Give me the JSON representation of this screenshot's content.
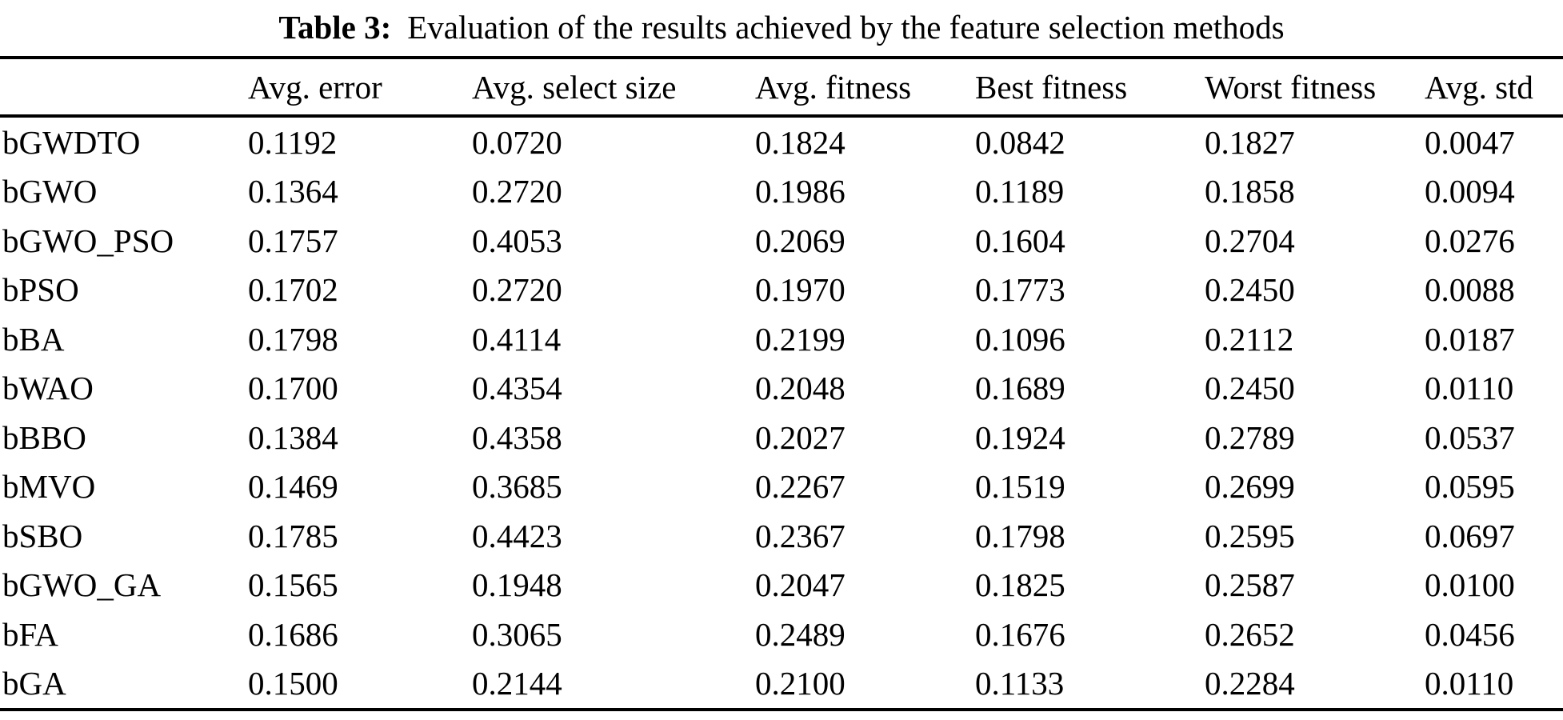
{
  "caption": {
    "label": "Table 3:",
    "text": "Evaluation of the results achieved by the feature selection methods"
  },
  "table": {
    "columns": [
      "",
      "Avg. error",
      "Avg. select size",
      "Avg. fitness",
      "Best fitness",
      "Worst fitness",
      "Avg. std"
    ],
    "rows": [
      {
        "method": "bGWDTO",
        "values": [
          "0.1192",
          "0.0720",
          "0.1824",
          "0.0842",
          "0.1827",
          "0.0047"
        ]
      },
      {
        "method": "bGWO",
        "values": [
          "0.1364",
          "0.2720",
          "0.1986",
          "0.1189",
          "0.1858",
          "0.0094"
        ]
      },
      {
        "method": "bGWO_PSO",
        "values": [
          "0.1757",
          "0.4053",
          "0.2069",
          "0.1604",
          "0.2704",
          "0.0276"
        ]
      },
      {
        "method": "bPSO",
        "values": [
          "0.1702",
          "0.2720",
          "0.1970",
          "0.1773",
          "0.2450",
          "0.0088"
        ]
      },
      {
        "method": "bBA",
        "values": [
          "0.1798",
          "0.4114",
          "0.2199",
          "0.1096",
          "0.2112",
          "0.0187"
        ]
      },
      {
        "method": "bWAO",
        "values": [
          "0.1700",
          "0.4354",
          "0.2048",
          "0.1689",
          "0.2450",
          "0.0110"
        ]
      },
      {
        "method": "bBBO",
        "values": [
          "0.1384",
          "0.4358",
          "0.2027",
          "0.1924",
          "0.2789",
          "0.0537"
        ]
      },
      {
        "method": "bMVO",
        "values": [
          "0.1469",
          "0.3685",
          "0.2267",
          "0.1519",
          "0.2699",
          "0.0595"
        ]
      },
      {
        "method": "bSBO",
        "values": [
          "0.1785",
          "0.4423",
          "0.2367",
          "0.1798",
          "0.2595",
          "0.0697"
        ]
      },
      {
        "method": "bGWO_GA",
        "values": [
          "0.1565",
          "0.1948",
          "0.2047",
          "0.1825",
          "0.2587",
          "0.0100"
        ]
      },
      {
        "method": "bFA",
        "values": [
          "0.1686",
          "0.3065",
          "0.2489",
          "0.1676",
          "0.2652",
          "0.0456"
        ]
      },
      {
        "method": "bGA",
        "values": [
          "0.1500",
          "0.2144",
          "0.2100",
          "0.1133",
          "0.2284",
          "0.0110"
        ]
      }
    ]
  }
}
